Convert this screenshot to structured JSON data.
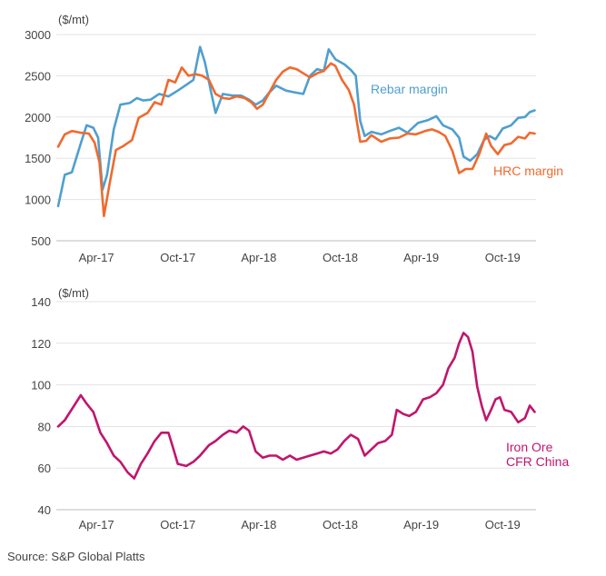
{
  "colors": {
    "rebar": "#4f9fcf",
    "hrc": "#ef6a2f",
    "iron_ore": "#c0166d",
    "grid": "#e3e3e3",
    "text": "#444444"
  },
  "source": "Source: S&P Global Platts",
  "chart_data": [
    {
      "type": "line",
      "unit_label": "($/mt)",
      "ylim": [
        500,
        3000
      ],
      "yticks": [
        500,
        1000,
        1500,
        2000,
        2500,
        3000
      ],
      "xlim": [
        "2017-01-01",
        "2019-12-15"
      ],
      "xticks": [
        {
          "date": "2017-04-01",
          "label": "Apr-17"
        },
        {
          "date": "2017-10-01",
          "label": "Oct-17"
        },
        {
          "date": "2018-04-01",
          "label": "Apr-18"
        },
        {
          "date": "2018-10-01",
          "label": "Oct-18"
        },
        {
          "date": "2019-04-01",
          "label": "Apr-19"
        },
        {
          "date": "2019-10-01",
          "label": "Oct-19"
        }
      ],
      "grid": true,
      "series": [
        {
          "name": "Rebar margin",
          "color": "#4f9fcf",
          "points": [
            [
              "2017-01-05",
              920
            ],
            [
              "2017-01-20",
              1300
            ],
            [
              "2017-02-05",
              1330
            ],
            [
              "2017-02-25",
              1680
            ],
            [
              "2017-03-10",
              1900
            ],
            [
              "2017-03-25",
              1870
            ],
            [
              "2017-04-05",
              1750
            ],
            [
              "2017-04-15",
              1120
            ],
            [
              "2017-04-25",
              1300
            ],
            [
              "2017-05-10",
              1850
            ],
            [
              "2017-05-25",
              2150
            ],
            [
              "2017-06-15",
              2170
            ],
            [
              "2017-07-01",
              2230
            ],
            [
              "2017-07-15",
              2200
            ],
            [
              "2017-08-01",
              2210
            ],
            [
              "2017-08-20",
              2280
            ],
            [
              "2017-09-10",
              2250
            ],
            [
              "2017-10-01",
              2320
            ],
            [
              "2017-10-20",
              2390
            ],
            [
              "2017-11-05",
              2450
            ],
            [
              "2017-11-20",
              2850
            ],
            [
              "2017-12-01",
              2660
            ],
            [
              "2017-12-15",
              2300
            ],
            [
              "2017-12-25",
              2050
            ],
            [
              "2018-01-10",
              2280
            ],
            [
              "2018-02-01",
              2260
            ],
            [
              "2018-02-20",
              2260
            ],
            [
              "2018-03-10",
              2210
            ],
            [
              "2018-03-25",
              2150
            ],
            [
              "2018-04-10",
              2200
            ],
            [
              "2018-04-25",
              2300
            ],
            [
              "2018-05-10",
              2380
            ],
            [
              "2018-06-01",
              2320
            ],
            [
              "2018-06-20",
              2300
            ],
            [
              "2018-07-10",
              2280
            ],
            [
              "2018-07-25",
              2500
            ],
            [
              "2018-08-10",
              2580
            ],
            [
              "2018-08-25",
              2560
            ],
            [
              "2018-09-05",
              2820
            ],
            [
              "2018-09-20",
              2700
            ],
            [
              "2018-10-10",
              2640
            ],
            [
              "2018-10-25",
              2570
            ],
            [
              "2018-11-05",
              2500
            ],
            [
              "2018-11-15",
              1950
            ],
            [
              "2018-11-25",
              1770
            ],
            [
              "2018-12-10",
              1820
            ],
            [
              "2019-01-01",
              1790
            ],
            [
              "2019-01-20",
              1830
            ],
            [
              "2019-02-10",
              1870
            ],
            [
              "2019-03-01",
              1810
            ],
            [
              "2019-03-25",
              1930
            ],
            [
              "2019-04-15",
              1960
            ],
            [
              "2019-05-05",
              2010
            ],
            [
              "2019-05-20",
              1900
            ],
            [
              "2019-06-10",
              1850
            ],
            [
              "2019-06-25",
              1750
            ],
            [
              "2019-07-05",
              1520
            ],
            [
              "2019-07-20",
              1470
            ],
            [
              "2019-08-05",
              1550
            ],
            [
              "2019-08-20",
              1720
            ],
            [
              "2019-09-01",
              1770
            ],
            [
              "2019-09-15",
              1730
            ],
            [
              "2019-10-01",
              1860
            ],
            [
              "2019-10-20",
              1900
            ],
            [
              "2019-11-05",
              1990
            ],
            [
              "2019-11-20",
              2000
            ],
            [
              "2019-12-01",
              2060
            ],
            [
              "2019-12-12",
              2080
            ]
          ]
        },
        {
          "name": "HRC margin",
          "color": "#ef6a2f",
          "points": [
            [
              "2017-01-05",
              1640
            ],
            [
              "2017-01-20",
              1790
            ],
            [
              "2017-02-05",
              1830
            ],
            [
              "2017-02-25",
              1810
            ],
            [
              "2017-03-15",
              1800
            ],
            [
              "2017-03-28",
              1690
            ],
            [
              "2017-04-08",
              1450
            ],
            [
              "2017-04-18",
              800
            ],
            [
              "2017-05-01",
              1200
            ],
            [
              "2017-05-15",
              1600
            ],
            [
              "2017-06-01",
              1650
            ],
            [
              "2017-06-20",
              1720
            ],
            [
              "2017-07-05",
              1990
            ],
            [
              "2017-07-25",
              2050
            ],
            [
              "2017-08-10",
              2180
            ],
            [
              "2017-08-25",
              2150
            ],
            [
              "2017-09-10",
              2450
            ],
            [
              "2017-09-25",
              2420
            ],
            [
              "2017-10-10",
              2600
            ],
            [
              "2017-10-25",
              2500
            ],
            [
              "2017-11-10",
              2520
            ],
            [
              "2017-11-25",
              2500
            ],
            [
              "2017-12-10",
              2450
            ],
            [
              "2017-12-25",
              2280
            ],
            [
              "2018-01-10",
              2230
            ],
            [
              "2018-01-25",
              2220
            ],
            [
              "2018-02-10",
              2250
            ],
            [
              "2018-02-28",
              2230
            ],
            [
              "2018-03-15",
              2180
            ],
            [
              "2018-03-28",
              2100
            ],
            [
              "2018-04-10",
              2150
            ],
            [
              "2018-04-25",
              2300
            ],
            [
              "2018-05-10",
              2450
            ],
            [
              "2018-05-25",
              2550
            ],
            [
              "2018-06-10",
              2600
            ],
            [
              "2018-06-25",
              2580
            ],
            [
              "2018-07-10",
              2530
            ],
            [
              "2018-07-25",
              2480
            ],
            [
              "2018-08-10",
              2530
            ],
            [
              "2018-08-25",
              2560
            ],
            [
              "2018-09-10",
              2650
            ],
            [
              "2018-09-20",
              2620
            ],
            [
              "2018-10-05",
              2450
            ],
            [
              "2018-10-20",
              2330
            ],
            [
              "2018-11-01",
              2150
            ],
            [
              "2018-11-15",
              1700
            ],
            [
              "2018-11-28",
              1710
            ],
            [
              "2018-12-10",
              1780
            ],
            [
              "2019-01-01",
              1700
            ],
            [
              "2019-01-20",
              1740
            ],
            [
              "2019-02-10",
              1750
            ],
            [
              "2019-03-01",
              1800
            ],
            [
              "2019-03-20",
              1790
            ],
            [
              "2019-04-10",
              1830
            ],
            [
              "2019-04-25",
              1850
            ],
            [
              "2019-05-10",
              1820
            ],
            [
              "2019-05-25",
              1770
            ],
            [
              "2019-06-10",
              1590
            ],
            [
              "2019-06-25",
              1320
            ],
            [
              "2019-07-10",
              1370
            ],
            [
              "2019-07-25",
              1370
            ],
            [
              "2019-08-10",
              1560
            ],
            [
              "2019-08-25",
              1800
            ],
            [
              "2019-09-05",
              1650
            ],
            [
              "2019-09-20",
              1550
            ],
            [
              "2019-10-05",
              1660
            ],
            [
              "2019-10-20",
              1680
            ],
            [
              "2019-11-05",
              1760
            ],
            [
              "2019-11-20",
              1740
            ],
            [
              "2019-12-01",
              1810
            ],
            [
              "2019-12-12",
              1800
            ]
          ]
        }
      ]
    },
    {
      "type": "line",
      "unit_label": "($/mt)",
      "ylim": [
        40,
        140
      ],
      "yticks": [
        40,
        60,
        80,
        100,
        120,
        140
      ],
      "xlim": [
        "2017-01-01",
        "2019-12-15"
      ],
      "xticks": [
        {
          "date": "2017-04-01",
          "label": "Apr-17"
        },
        {
          "date": "2017-10-01",
          "label": "Oct-17"
        },
        {
          "date": "2018-04-01",
          "label": "Apr-18"
        },
        {
          "date": "2018-10-01",
          "label": "Oct-18"
        },
        {
          "date": "2019-04-01",
          "label": "Apr-19"
        },
        {
          "date": "2019-10-01",
          "label": "Oct-19"
        }
      ],
      "grid": true,
      "series": [
        {
          "name": "Iron Ore CFR China",
          "name_lines": [
            "Iron Ore",
            "CFR China"
          ],
          "color": "#c0166d",
          "points": [
            [
              "2017-01-05",
              80
            ],
            [
              "2017-01-20",
              83
            ],
            [
              "2017-02-10",
              90
            ],
            [
              "2017-02-25",
              95
            ],
            [
              "2017-03-10",
              91
            ],
            [
              "2017-03-25",
              87
            ],
            [
              "2017-04-10",
              77
            ],
            [
              "2017-04-25",
              72
            ],
            [
              "2017-05-10",
              66
            ],
            [
              "2017-05-25",
              63
            ],
            [
              "2017-06-10",
              58
            ],
            [
              "2017-06-25",
              55
            ],
            [
              "2017-07-10",
              62
            ],
            [
              "2017-07-25",
              67
            ],
            [
              "2017-08-10",
              73
            ],
            [
              "2017-08-25",
              77
            ],
            [
              "2017-09-10",
              77
            ],
            [
              "2017-09-20",
              70
            ],
            [
              "2017-10-01",
              62
            ],
            [
              "2017-10-20",
              61
            ],
            [
              "2017-11-05",
              63
            ],
            [
              "2017-11-20",
              66
            ],
            [
              "2017-12-10",
              71
            ],
            [
              "2017-12-25",
              73
            ],
            [
              "2018-01-10",
              76
            ],
            [
              "2018-01-25",
              78
            ],
            [
              "2018-02-10",
              77
            ],
            [
              "2018-02-25",
              80
            ],
            [
              "2018-03-10",
              78
            ],
            [
              "2018-03-25",
              68
            ],
            [
              "2018-04-10",
              65
            ],
            [
              "2018-04-25",
              66
            ],
            [
              "2018-05-10",
              66
            ],
            [
              "2018-05-25",
              64
            ],
            [
              "2018-06-10",
              66
            ],
            [
              "2018-06-25",
              64
            ],
            [
              "2018-07-10",
              65
            ],
            [
              "2018-07-25",
              66
            ],
            [
              "2018-08-10",
              67
            ],
            [
              "2018-08-25",
              68
            ],
            [
              "2018-09-10",
              67
            ],
            [
              "2018-09-25",
              69
            ],
            [
              "2018-10-10",
              73
            ],
            [
              "2018-10-25",
              76
            ],
            [
              "2018-11-10",
              74
            ],
            [
              "2018-11-25",
              66
            ],
            [
              "2018-12-10",
              69
            ],
            [
              "2018-12-25",
              72
            ],
            [
              "2019-01-10",
              73
            ],
            [
              "2019-01-25",
              76
            ],
            [
              "2019-02-05",
              88
            ],
            [
              "2019-02-20",
              86
            ],
            [
              "2019-03-05",
              85
            ],
            [
              "2019-03-20",
              87
            ],
            [
              "2019-04-05",
              93
            ],
            [
              "2019-04-20",
              94
            ],
            [
              "2019-05-05",
              96
            ],
            [
              "2019-05-20",
              100
            ],
            [
              "2019-06-01",
              108
            ],
            [
              "2019-06-15",
              113
            ],
            [
              "2019-06-25",
              120
            ],
            [
              "2019-07-05",
              125
            ],
            [
              "2019-07-15",
              123
            ],
            [
              "2019-07-25",
              116
            ],
            [
              "2019-08-05",
              99
            ],
            [
              "2019-08-15",
              90
            ],
            [
              "2019-08-25",
              83
            ],
            [
              "2019-09-05",
              88
            ],
            [
              "2019-09-15",
              93
            ],
            [
              "2019-09-25",
              94
            ],
            [
              "2019-10-05",
              88
            ],
            [
              "2019-10-20",
              87
            ],
            [
              "2019-11-05",
              82
            ],
            [
              "2019-11-20",
              84
            ],
            [
              "2019-12-01",
              90
            ],
            [
              "2019-12-12",
              87
            ]
          ]
        }
      ]
    }
  ]
}
